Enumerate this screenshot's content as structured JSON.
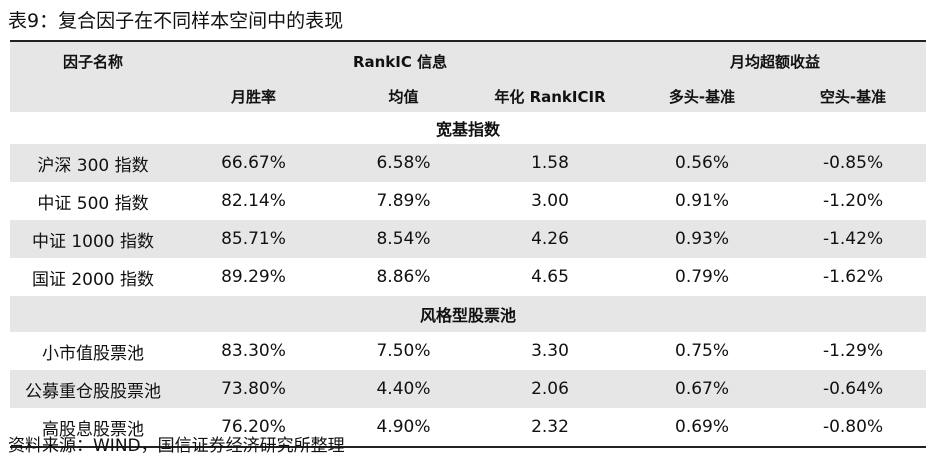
{
  "title": "表9：复合因子在不同样本空间中的表现",
  "header": {
    "factor_name": "因子名称",
    "rankic_group": "RankIC 信息",
    "excess_group": "月均超额收益",
    "columns": [
      "月胜率",
      "均值",
      "年化 RankICIR",
      "多头-基准",
      "空头-基准"
    ]
  },
  "sections": [
    {
      "title": "宽基指数",
      "rows": [
        {
          "name": "沪深 300 指数",
          "values": [
            "66.67%",
            "6.58%",
            "1.58",
            "0.56%",
            "-0.85%"
          ]
        },
        {
          "name": "中证 500 指数",
          "values": [
            "82.14%",
            "7.89%",
            "3.00",
            "0.91%",
            "-1.20%"
          ]
        },
        {
          "name": "中证 1000 指数",
          "values": [
            "85.71%",
            "8.54%",
            "4.26",
            "0.93%",
            "-1.42%"
          ]
        },
        {
          "name": "国证 2000 指数",
          "values": [
            "89.29%",
            "8.86%",
            "4.65",
            "0.79%",
            "-1.62%"
          ]
        }
      ]
    },
    {
      "title": "风格型股票池",
      "rows": [
        {
          "name": "小市值股票池",
          "values": [
            "83.30%",
            "7.50%",
            "3.30",
            "0.75%",
            "-1.29%"
          ]
        },
        {
          "name": "公募重仓股股票池",
          "values": [
            "73.80%",
            "4.40%",
            "2.06",
            "0.67%",
            "-0.64%"
          ]
        },
        {
          "name": "高股息股票池",
          "values": [
            "76.20%",
            "4.90%",
            "2.32",
            "0.69%",
            "-0.80%"
          ]
        }
      ]
    }
  ],
  "source": "资料来源：WIND，国信证券经济研究所整理",
  "colors": {
    "header_bg": "#e6e6e6",
    "rule": "#222222"
  }
}
